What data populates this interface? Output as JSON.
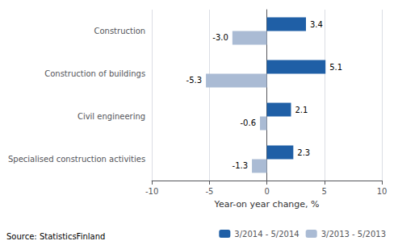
{
  "chart_data": {
    "type": "bar",
    "orientation": "horizontal",
    "categories": [
      "Construction",
      "Construction of buildings",
      "Civil engineering",
      "Specialised construction activities"
    ],
    "series": [
      {
        "name": "3/2014 - 5/2014",
        "color": "#1F5FA6",
        "values": [
          3.4,
          5.1,
          2.1,
          2.3
        ]
      },
      {
        "name": "3/2013 - 5/2013",
        "color": "#AABBD4",
        "values": [
          -3.0,
          -5.3,
          -0.6,
          -1.3
        ],
        "value_labels": [
          "-3.0",
          "-5.3",
          "-0.6",
          "-1.3"
        ]
      }
    ],
    "xlabel": "Year-on year change, %",
    "xlim": [
      -10,
      10
    ],
    "xticks": [
      -10,
      -5,
      0,
      5,
      10
    ],
    "grid": true,
    "data_labels": true,
    "legend": "lower right",
    "annotations": [
      "Source: StatisticsFinland"
    ]
  }
}
